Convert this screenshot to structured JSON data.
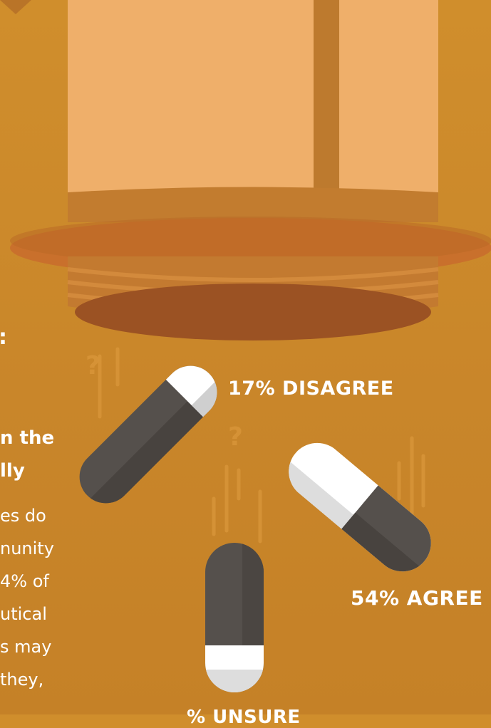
{
  "labels": {
    "disagree": "17% DISAGREE",
    "agree": "54% AGREE",
    "unsure": "% UNSURE"
  },
  "side_text": {
    "colon": ":",
    "bold_lines": [
      "n the",
      "lly"
    ],
    "body_lines": [
      "es do",
      "nunity",
      "4% of",
      "utical",
      "s may",
      " they,"
    ]
  },
  "decor": {
    "question_mark": "?"
  },
  "colors": {
    "background": "#cc8a2b",
    "bottle_glass": "#f0b06a",
    "bottle_rim": "#c0702a",
    "bottle_opening": "#9c5424",
    "pill_dark": "#55504c",
    "pill_light": "#ffffff"
  }
}
